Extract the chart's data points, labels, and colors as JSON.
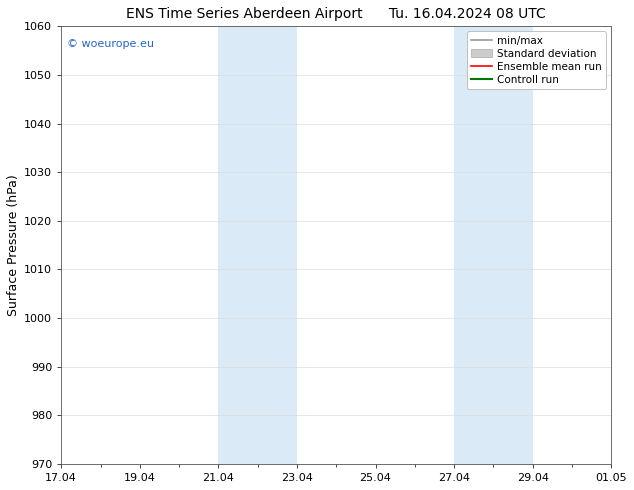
{
  "title": "ENS Time Series Aberdeen Airport",
  "title2": "Tu. 16.04.2024 08 UTC",
  "ylabel": "Surface Pressure (hPa)",
  "ylim": [
    970,
    1060
  ],
  "yticks": [
    970,
    980,
    990,
    1000,
    1010,
    1020,
    1030,
    1040,
    1050,
    1060
  ],
  "xtick_labels": [
    "17.04",
    "19.04",
    "21.04",
    "23.04",
    "25.04",
    "27.04",
    "29.04",
    "01.05"
  ],
  "xtick_positions": [
    0,
    2,
    4,
    6,
    8,
    10,
    12,
    14
  ],
  "blue_bands": [
    {
      "start": 4.0,
      "end": 6.0
    },
    {
      "start": 10.0,
      "end": 12.0
    }
  ],
  "band_color": "#daeaf7",
  "bg_color": "#ffffff",
  "legend_items": [
    {
      "label": "min/max",
      "color": "#999999",
      "lw": 1.2,
      "style": "line"
    },
    {
      "label": "Standard deviation",
      "color": "#cccccc",
      "edgecolor": "#aaaaaa",
      "style": "box"
    },
    {
      "label": "Ensemble mean run",
      "color": "#ff0000",
      "lw": 1.2,
      "style": "line"
    },
    {
      "label": "Controll run",
      "color": "#007700",
      "lw": 1.5,
      "style": "line"
    }
  ],
  "watermark": "© woeurope.eu",
  "watermark_color": "#2266cc",
  "grid_color": "#dddddd",
  "title_fontsize": 10,
  "ylabel_fontsize": 9,
  "tick_fontsize": 8,
  "legend_fontsize": 7.5
}
